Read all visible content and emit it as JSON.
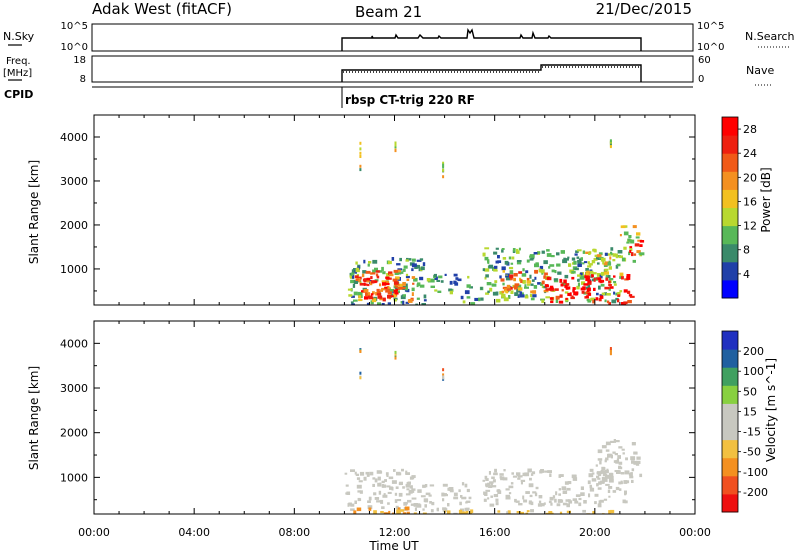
{
  "header": {
    "station": "Adak West (fitACF)",
    "beam": "Beam 21",
    "date": "21/Dec/2015"
  },
  "strips": {
    "nsky_label": "N.Sky",
    "nsearch_label": "N.Search",
    "nsky_ticks": [
      "10^5",
      "10^0"
    ],
    "nsearch_ticks": [
      "10^5",
      "10^0"
    ],
    "freq_label_1": "Freq.",
    "freq_label_2": "[MHz]",
    "freq_ticks": [
      "18",
      "8"
    ],
    "nave_label": "Nave",
    "nave_ticks": [
      "60",
      "0"
    ],
    "cpid_label": "CPID",
    "cpid_program": "rbsp CT-trig 220 RF"
  },
  "colors": {
    "power_scale": [
      "#0000ff",
      "#2040a8",
      "#3a8a6a",
      "#58b858",
      "#b8d830",
      "#f2c020",
      "#f49020",
      "#f05a18",
      "#ee2010",
      "#ff0000"
    ],
    "velocity_scale": [
      "#ee1010",
      "#f05020",
      "#f49020",
      "#f2c040",
      "#c8c8c0",
      "#c8c8c0",
      "#88d040",
      "#40a060",
      "#2060a0",
      "#2030c0"
    ],
    "ground_scatter": "#c8c8c0",
    "strip_trace": "#000000"
  },
  "chart_data": [
    {
      "type": "heatmap",
      "title": "",
      "xlabel": "",
      "ylabel": "Slant Range [km]",
      "xlim": [
        0,
        24
      ],
      "ylim": [
        180,
        4500
      ],
      "y_ticks": [
        "1000",
        "2000",
        "3000",
        "4000"
      ],
      "colorbar": {
        "label": "Power [dB]",
        "ticks": [
          "28",
          "24",
          "20",
          "16",
          "12",
          "8",
          "4"
        ],
        "range": [
          0,
          30
        ]
      },
      "blobs": [
        {
          "t0": 10.0,
          "t1": 10.5,
          "r0": 300,
          "r1": 1100,
          "value": 10
        },
        {
          "t0": 10.2,
          "t1": 13.2,
          "r0": 200,
          "r1": 1300,
          "value": 9
        },
        {
          "t0": 10.4,
          "t1": 12.8,
          "r0": 300,
          "r1": 1000,
          "value": 20
        },
        {
          "t0": 10.6,
          "t1": 12.2,
          "r0": 350,
          "r1": 850,
          "value": 28
        },
        {
          "t0": 13.2,
          "t1": 15.0,
          "r0": 500,
          "r1": 900,
          "value": 8
        },
        {
          "t0": 14.6,
          "t1": 15.6,
          "r0": 200,
          "r1": 400,
          "value": 9
        },
        {
          "t0": 15.4,
          "t1": 21.0,
          "r0": 300,
          "r1": 1500,
          "value": 10
        },
        {
          "t0": 16.2,
          "t1": 18.0,
          "r0": 500,
          "r1": 1000,
          "value": 20
        },
        {
          "t0": 18.0,
          "t1": 21.4,
          "r0": 200,
          "r1": 900,
          "value": 28
        },
        {
          "t0": 19.6,
          "t1": 21.0,
          "r0": 900,
          "r1": 1400,
          "value": 16
        },
        {
          "t0": 21.0,
          "t1": 21.8,
          "r0": 1200,
          "r1": 2000,
          "value": 14
        },
        {
          "t0": 21.3,
          "t1": 21.8,
          "r0": 1300,
          "r1": 1700,
          "value": 28
        }
      ]
    },
    {
      "type": "heatmap",
      "title": "",
      "xlabel": "Time UT",
      "ylabel": "Slant Range [km]",
      "xlim": [
        0,
        24
      ],
      "ylim": [
        180,
        4500
      ],
      "x_ticks": [
        "00:00",
        "04:00",
        "08:00",
        "12:00",
        "16:00",
        "20:00",
        "00:00"
      ],
      "y_ticks": [
        "1000",
        "2000",
        "3000",
        "4000"
      ],
      "colorbar": {
        "label": "Velocity [m s^-1]",
        "ticks": [
          "200",
          "100",
          "50",
          "15",
          "-15",
          "-50",
          "-100",
          "-200"
        ],
        "range": [
          -250,
          250
        ]
      },
      "blobs": [
        {
          "t0": 10.0,
          "t1": 13.0,
          "r0": 300,
          "r1": 1200,
          "value": 0
        },
        {
          "t0": 10.3,
          "t1": 12.5,
          "r0": 200,
          "r1": 350,
          "value": -120
        },
        {
          "t0": 13.0,
          "t1": 15.0,
          "r0": 300,
          "r1": 900,
          "value": 0
        },
        {
          "t0": 15.5,
          "t1": 21.2,
          "r0": 400,
          "r1": 1200,
          "value": 0
        },
        {
          "t0": 20.0,
          "t1": 21.8,
          "r0": 900,
          "r1": 1900,
          "value": 0
        },
        {
          "t0": 10.2,
          "t1": 21.0,
          "r0": 190,
          "r1": 300,
          "value": -60
        }
      ]
    }
  ]
}
